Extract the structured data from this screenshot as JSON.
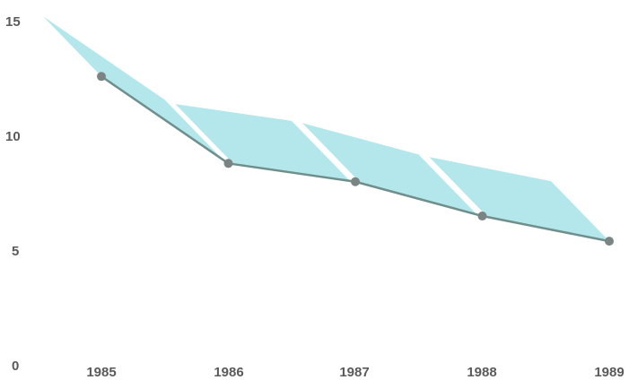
{
  "chart_data": {
    "type": "line",
    "title": "",
    "xlabel": "",
    "ylabel": "",
    "categories": [
      "1985",
      "1986",
      "1987",
      "1988",
      "1989"
    ],
    "series": [
      {
        "values": [
          12.6,
          8.8,
          8.0,
          6.5,
          5.4
        ]
      }
    ],
    "ylim": [
      0,
      15
    ],
    "yticks": [
      "0",
      "5",
      "10",
      "15"
    ],
    "grid": false,
    "legend": "none",
    "colors": {
      "line": "#6f8f8c",
      "marker": "#7a8583",
      "ribbon": "#a6e3e7",
      "text": "#5a5a5a"
    }
  }
}
